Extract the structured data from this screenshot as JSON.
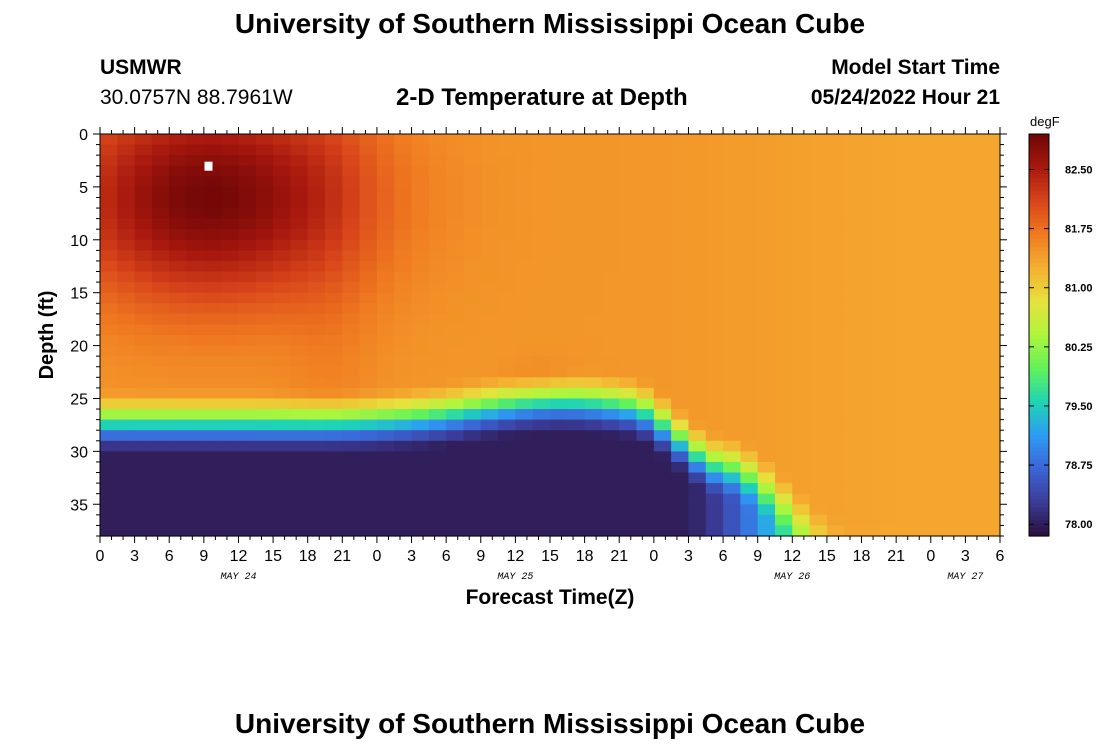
{
  "header": {
    "title": "University of Southern Mississippi Ocean Cube",
    "station": "USMWR",
    "coords": "30.0757N  88.7961W",
    "subtitle": "2-D Temperature at Depth",
    "model_start_label": "Model Start Time",
    "model_start_value": "05/24/2022 Hour 21"
  },
  "footer": {
    "title": "University of Southern Mississippi Ocean Cube"
  },
  "colorbar": {
    "unit": "degF",
    "ticks": [
      "82.50",
      "81.75",
      "81.00",
      "80.25",
      "79.50",
      "78.75",
      "78.00"
    ],
    "min": 77.85,
    "max": 82.95,
    "colors": [
      "#2a0f3a",
      "#3b3b97",
      "#3b65d6",
      "#2d9cf4",
      "#1fd4b4",
      "#62f25a",
      "#b0f53c",
      "#e6e23c",
      "#f5b032",
      "#f07a20",
      "#d8441a",
      "#a8180e",
      "#6e0606"
    ]
  },
  "chart_data": {
    "type": "heatmap",
    "title": "2-D Temperature at Depth",
    "xlabel": "Forecast Time(Z)",
    "ylabel": "Depth (ft)",
    "x_range_hours": [
      0,
      78
    ],
    "y_range_ft": [
      0,
      38
    ],
    "x_ticks": [
      "0",
      "3",
      "6",
      "9",
      "12",
      "15",
      "18",
      "21",
      "0",
      "3",
      "6",
      "9",
      "12",
      "15",
      "18",
      "21",
      "0",
      "3",
      "6",
      "9",
      "12",
      "15",
      "18",
      "21",
      "0",
      "3",
      "6"
    ],
    "y_ticks": [
      "0",
      "5",
      "10",
      "15",
      "20",
      "25",
      "30",
      "35"
    ],
    "date_labels": [
      {
        "label": "MAY 24",
        "hour": 12
      },
      {
        "label": "MAY 25",
        "hour": 36
      },
      {
        "label": "MAY 26",
        "hour": 60
      },
      {
        "label": "MAY 27",
        "hour": 75
      }
    ],
    "marker": {
      "hour": 9.4,
      "depth_ft": 3
    },
    "value_range_degF": [
      77.85,
      82.95
    ],
    "description": "Warm surface layer (~82.9 degF near hour 9, 5-7 ft) cooling to ~81.5 degF after hour 36; cold bottom layer (~78 degF) below 25-30 ft during first 54 hours, thermocline deepening to ~37 ft by hour 66 with water column near 81 degF."
  }
}
